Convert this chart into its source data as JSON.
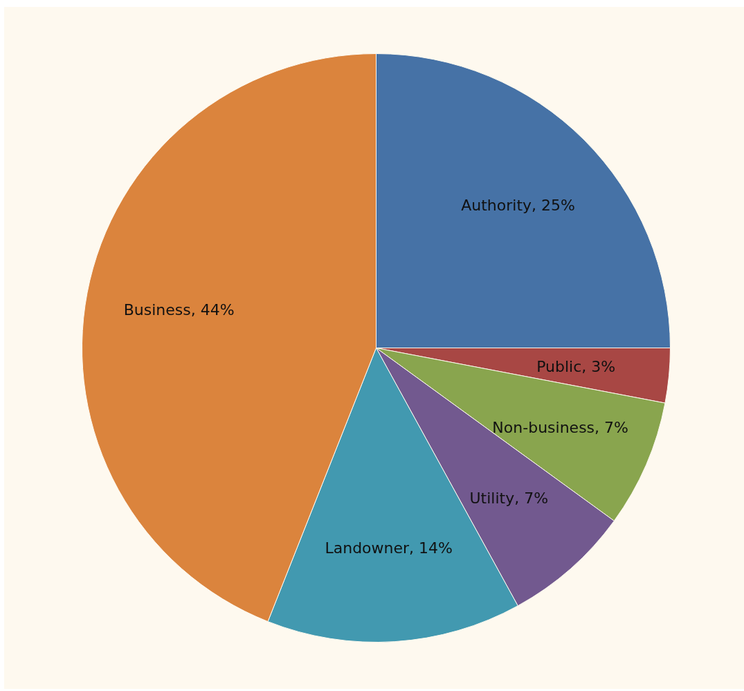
{
  "chart_data": {
    "type": "pie",
    "categories": [
      "Authority",
      "Public",
      "Non-business",
      "Utility",
      "Landowner",
      "Business"
    ],
    "values": [
      25,
      3,
      7,
      7,
      14,
      44
    ],
    "colors": [
      "#4672a6",
      "#a84744",
      "#89a54e",
      "#72598f",
      "#4299b0",
      "#db843d"
    ],
    "value_labels": [
      "25%",
      "3%",
      "7%",
      "7%",
      "14%",
      "44%"
    ]
  }
}
